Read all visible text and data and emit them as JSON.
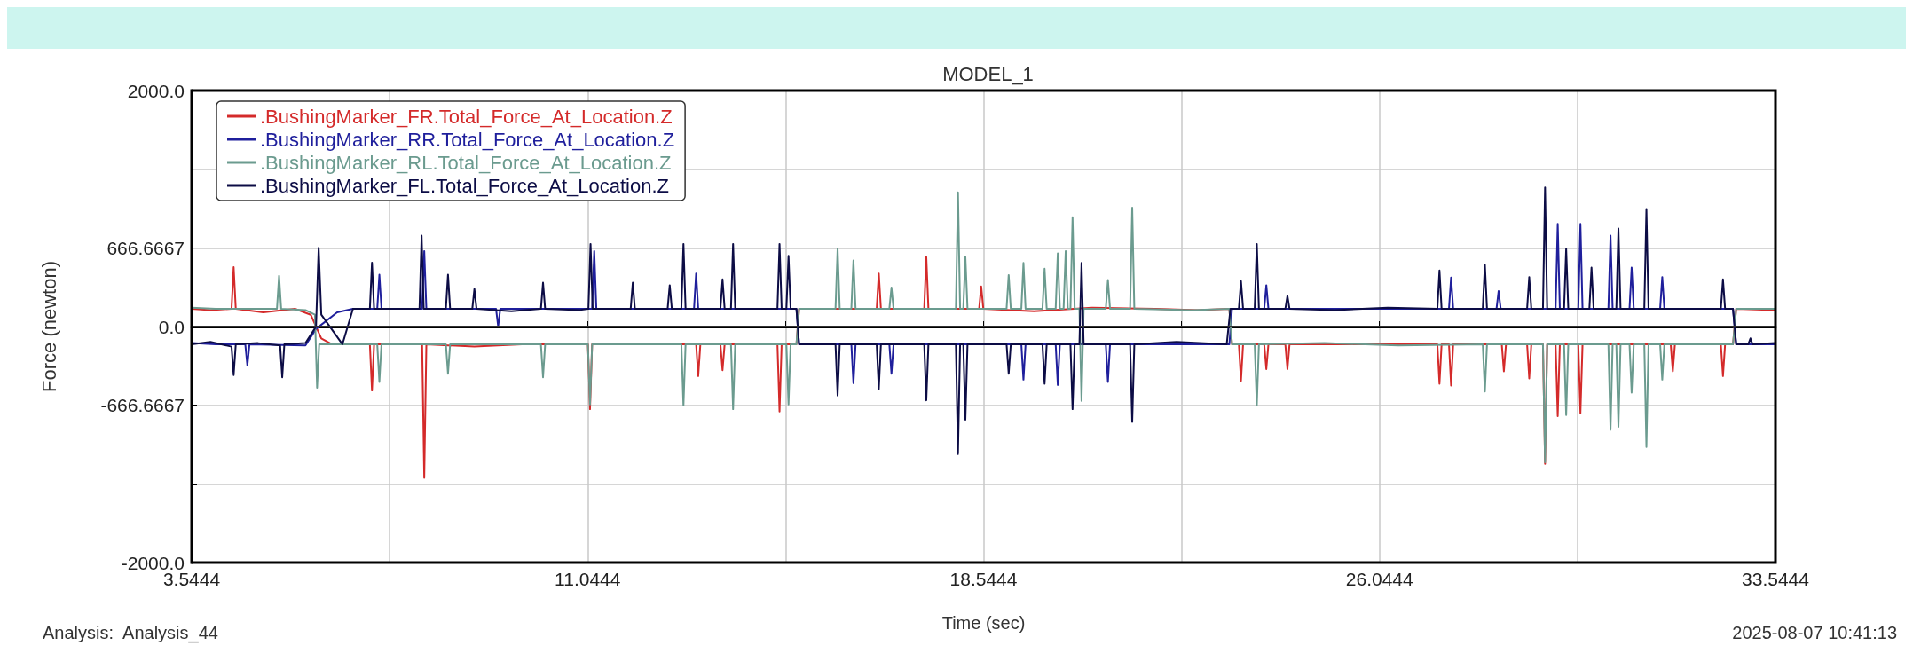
{
  "chart_data": {
    "type": "line",
    "title": "MODEL_1",
    "xlabel": "Time (sec)",
    "ylabel": "Force (newton)",
    "annotations": [
      "Analysis:  Analysis_44",
      "2025-08-07 10:41:13"
    ],
    "xlim": [
      3.5444,
      33.5444
    ],
    "xticks": [
      3.5444,
      {
        "value": 7.2944,
        "label": null
      },
      11.0444,
      {
        "value": 14.7944,
        "label": null
      },
      18.5444,
      {
        "value": 22.2944,
        "label": null
      },
      26.0444,
      {
        "value": 29.7944,
        "label": null
      },
      33.5444
    ],
    "ylim": [
      -2000,
      2000
    ],
    "yticks": [
      {
        "value": -2000,
        "label": "-2000.0"
      },
      {
        "value": -1333.3333,
        "label": null
      },
      -666.6667,
      {
        "value": 0,
        "label": "0.0"
      },
      666.6667,
      {
        "value": 1333.3333,
        "label": null
      },
      {
        "value": 2000,
        "label": "2000.0"
      }
    ],
    "grid": true,
    "legend": "top left",
    "marker": "none",
    "line_style": "solid",
    "ref_lines": [
      {
        "axis": "y",
        "value": 0,
        "color": "#333333"
      }
    ],
    "series": [
      {
        "name": ".BushingMarker_FR.Total_Force_At_Location.Z",
        "color": "#d42a2a",
        "x": [
          3.5444,
          3.9,
          4.3,
          4.34,
          4.38,
          4.9,
          5.5,
          5.8,
          6.0,
          6.2,
          6.92,
          6.96,
          7.0,
          7.91,
          7.95,
          7.99,
          8.9,
          9.8,
          11.05,
          11.09,
          11.13,
          12.0,
          13.1,
          13.14,
          13.18,
          13.56,
          13.6,
          13.64,
          14.64,
          14.68,
          14.72,
          15.0,
          15.05,
          16.52,
          16.56,
          16.6,
          17.42,
          17.46,
          17.5,
          18.46,
          18.5,
          18.54,
          19.5,
          20.6,
          21.8,
          22.6,
          23.2,
          23.25,
          23.38,
          23.42,
          23.46,
          23.86,
          23.9,
          23.94,
          24.26,
          24.3,
          24.34,
          25.6,
          27.14,
          27.18,
          27.22,
          27.36,
          27.4,
          27.44,
          28.36,
          28.4,
          28.44,
          28.84,
          28.88,
          28.92,
          29.14,
          29.18,
          29.22,
          29.38,
          29.42,
          29.46,
          29.81,
          29.85,
          29.89,
          31.56,
          31.6,
          31.64,
          32.51,
          32.55,
          32.59,
          32.74,
          32.8,
          33.5444
        ],
        "values": [
          150,
          140,
          150,
          504,
          150,
          120,
          150,
          100,
          -100,
          -150,
          -150,
          -542,
          -150,
          -150,
          -1282,
          -150,
          -170,
          -150,
          -150,
          -700,
          -150,
          -150,
          -150,
          -420,
          -150,
          -150,
          -370,
          -150,
          -150,
          -720,
          -150,
          -150,
          150,
          150,
          450,
          150,
          150,
          590,
          150,
          150,
          340,
          150,
          130,
          160,
          150,
          140,
          150,
          -150,
          -150,
          -460,
          -150,
          -150,
          -360,
          -150,
          -150,
          -360,
          -150,
          -150,
          -150,
          -485,
          -150,
          -150,
          -500,
          -150,
          -150,
          -380,
          -150,
          -150,
          -440,
          -150,
          -150,
          -1163,
          -150,
          -150,
          -760,
          -150,
          -150,
          -735,
          -150,
          -150,
          -380,
          -150,
          -150,
          -420,
          -150,
          -150,
          150,
          140
        ]
      },
      {
        "name": ".BushingMarker_RR.Total_Force_At_Location.Z",
        "color": "#1f1f9c",
        "x": [
          3.5444,
          4.0,
          4.56,
          4.6,
          4.64,
          5.7,
          5.9,
          6.3,
          6.6,
          7.06,
          7.1,
          7.14,
          7.91,
          7.95,
          7.99,
          9.31,
          9.35,
          9.39,
          11.13,
          11.17,
          11.21,
          13.06,
          13.1,
          13.14,
          15.0,
          15.05,
          16.04,
          16.08,
          16.12,
          16.76,
          16.8,
          16.84,
          19.26,
          19.3,
          19.34,
          19.91,
          19.95,
          19.99,
          20.86,
          20.9,
          20.94,
          23.2,
          23.25,
          23.86,
          23.9,
          23.94,
          27.36,
          27.4,
          27.44,
          28.26,
          28.3,
          28.34,
          29.38,
          29.42,
          29.46,
          29.81,
          29.85,
          29.89,
          30.38,
          30.42,
          30.46,
          30.78,
          30.82,
          30.86,
          31.36,
          31.4,
          31.44,
          32.74,
          32.8,
          33.5444
        ],
        "values": [
          -140,
          -150,
          -150,
          -330,
          -150,
          -160,
          -20,
          120,
          150,
          150,
          440,
          150,
          150,
          640,
          150,
          150,
          0,
          150,
          150,
          640,
          150,
          150,
          450,
          150,
          150,
          -150,
          -150,
          -480,
          -150,
          -150,
          -400,
          -150,
          -150,
          -450,
          -150,
          -150,
          -495,
          -150,
          -150,
          -470,
          -150,
          -150,
          150,
          150,
          350,
          150,
          150,
          415,
          150,
          150,
          300,
          150,
          150,
          870,
          150,
          150,
          870,
          150,
          150,
          770,
          150,
          150,
          500,
          150,
          150,
          420,
          150,
          150,
          -150,
          -150
        ]
      },
      {
        "name": ".BushingMarker_RL.Total_Force_At_Location.Z",
        "color": "#6b9b8f",
        "x": [
          3.5444,
          4.0,
          5.16,
          5.2,
          5.24,
          5.7,
          5.88,
          5.92,
          5.96,
          7.06,
          7.1,
          7.14,
          8.36,
          8.4,
          8.44,
          10.16,
          10.2,
          10.24,
          11.05,
          11.09,
          11.13,
          12.82,
          12.86,
          12.9,
          13.76,
          13.8,
          13.84,
          14.81,
          14.85,
          14.89,
          15.0,
          15.05,
          15.74,
          15.78,
          15.82,
          16.04,
          16.08,
          16.12,
          16.76,
          16.8,
          16.84,
          18.02,
          18.06,
          18.1,
          18.16,
          18.2,
          18.24,
          18.98,
          19.02,
          19.06,
          19.26,
          19.3,
          19.34,
          19.66,
          19.7,
          19.74,
          19.91,
          19.95,
          19.99,
          20.06,
          20.1,
          20.14,
          20.19,
          20.23,
          20.27,
          20.36,
          20.4,
          20.44,
          20.86,
          20.9,
          20.94,
          21.32,
          21.36,
          21.4,
          22.5,
          23.2,
          23.25,
          23.68,
          23.72,
          23.76,
          25.0,
          26.4,
          28.0,
          28.04,
          28.08,
          29.14,
          29.18,
          29.22,
          29.54,
          29.58,
          29.62,
          30.38,
          30.42,
          30.46,
          30.53,
          30.57,
          30.61,
          30.78,
          30.82,
          30.86,
          31.06,
          31.1,
          31.14,
          31.36,
          31.4,
          31.44,
          32.74,
          32.8,
          33.5444
        ],
        "values": [
          160,
          150,
          150,
          430,
          150,
          140,
          100,
          -518,
          -150,
          -150,
          -470,
          -150,
          -150,
          -400,
          -150,
          -150,
          -430,
          -150,
          -150,
          -660,
          -150,
          -150,
          -670,
          -150,
          -150,
          -700,
          -150,
          -150,
          -660,
          -150,
          -150,
          150,
          150,
          660,
          150,
          150,
          560,
          150,
          150,
          330,
          150,
          150,
          1137,
          150,
          150,
          590,
          150,
          150,
          437,
          150,
          150,
          540,
          150,
          150,
          490,
          150,
          150,
          620,
          150,
          150,
          640,
          150,
          150,
          926,
          150,
          150,
          -630,
          150,
          150,
          395,
          150,
          150,
          1007,
          150,
          140,
          150,
          -150,
          -150,
          -670,
          -150,
          -140,
          -160,
          -150,
          -550,
          -150,
          -150,
          -1150,
          -150,
          -150,
          -750,
          -150,
          -150,
          -875,
          -150,
          -150,
          -850,
          -150,
          -150,
          -560,
          -150,
          -150,
          -1020,
          -150,
          -150,
          -450,
          -150,
          -150,
          150,
          150
        ]
      },
      {
        "name": ".BushingMarker_FL.Total_Force_At_Location.Z",
        "color": "#0c0c45",
        "x": [
          3.5444,
          3.9,
          4.3,
          4.34,
          4.38,
          4.8,
          5.22,
          5.26,
          5.3,
          5.7,
          5.9,
          5.95,
          6.0,
          6.4,
          6.6,
          6.92,
          6.96,
          7.0,
          7.86,
          7.9,
          7.94,
          8.36,
          8.4,
          8.44,
          8.86,
          8.9,
          8.94,
          9.6,
          10.16,
          10.2,
          10.24,
          10.9,
          11.06,
          11.1,
          11.14,
          11.86,
          11.9,
          11.94,
          12.56,
          12.6,
          12.64,
          12.82,
          12.86,
          12.9,
          13.56,
          13.6,
          13.64,
          13.76,
          13.8,
          13.84,
          14.64,
          14.68,
          14.72,
          14.81,
          14.85,
          14.89,
          15.0,
          15.05,
          15.74,
          15.78,
          15.82,
          16.52,
          16.56,
          16.6,
          17.42,
          17.46,
          17.5,
          18.02,
          18.06,
          18.1,
          18.16,
          18.2,
          18.24,
          18.98,
          19.02,
          19.06,
          19.66,
          19.7,
          19.74,
          20.19,
          20.23,
          20.27,
          20.36,
          20.4,
          20.44,
          21.32,
          21.36,
          21.4,
          22.2,
          23.15,
          23.22,
          23.38,
          23.42,
          23.46,
          23.68,
          23.72,
          23.76,
          24.26,
          24.3,
          24.34,
          25.2,
          26.2,
          27.14,
          27.18,
          27.22,
          28.0,
          28.04,
          28.08,
          28.84,
          28.88,
          28.92,
          29.14,
          29.18,
          29.22,
          29.54,
          29.58,
          29.62,
          30.02,
          30.06,
          30.1,
          30.53,
          30.57,
          30.61,
          31.06,
          31.1,
          31.14,
          32.51,
          32.55,
          32.59,
          32.74,
          32.8,
          33.03,
          33.07,
          33.11,
          33.5444
        ],
        "values": [
          -150,
          -130,
          -170,
          -411,
          -150,
          -140,
          -160,
          -430,
          -150,
          -140,
          0,
          667,
          100,
          -150,
          150,
          150,
          541,
          150,
          150,
          770,
          150,
          150,
          440,
          150,
          150,
          319,
          150,
          130,
          150,
          372,
          150,
          140,
          150,
          700,
          150,
          150,
          372,
          150,
          150,
          350,
          150,
          150,
          700,
          150,
          150,
          400,
          150,
          150,
          700,
          150,
          150,
          700,
          150,
          150,
          600,
          150,
          150,
          -150,
          -150,
          -585,
          -150,
          -150,
          -530,
          -150,
          -150,
          -625,
          -150,
          -150,
          -1080,
          -150,
          -150,
          -790,
          -150,
          -150,
          -400,
          -150,
          -150,
          -485,
          -150,
          -150,
          -700,
          -150,
          -150,
          540,
          -150,
          -150,
          -808,
          -150,
          -130,
          -150,
          150,
          150,
          385,
          150,
          150,
          700,
          150,
          150,
          260,
          150,
          140,
          160,
          150,
          475,
          150,
          150,
          525,
          150,
          150,
          420,
          150,
          150,
          1178,
          150,
          150,
          660,
          150,
          150,
          500,
          150,
          150,
          830,
          150,
          150,
          997,
          150,
          150,
          400,
          150,
          150,
          -150,
          -150,
          -100,
          -150,
          -140
        ]
      }
    ]
  }
}
